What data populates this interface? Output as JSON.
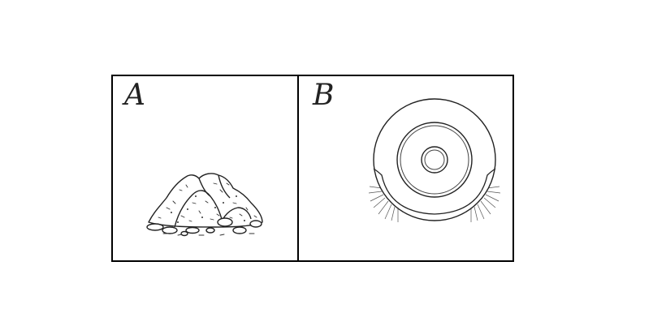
{
  "panels": [
    {
      "label": "A",
      "icon": "dirt-pile-icon"
    },
    {
      "label": "B",
      "icon": "robot-vacuum-icon"
    }
  ],
  "colors": {
    "line": "#000000",
    "background": "#ffffff"
  }
}
